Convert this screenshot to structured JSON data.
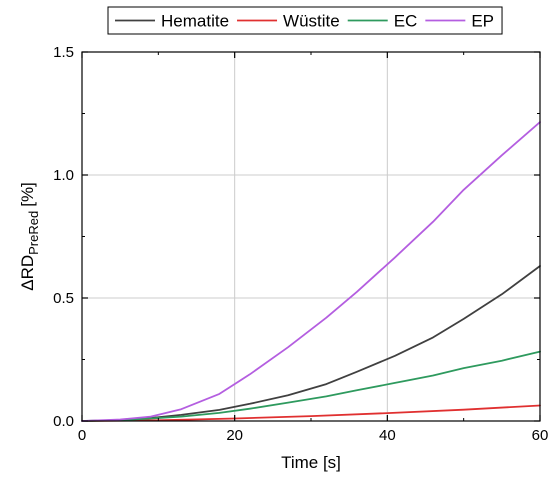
{
  "chart_data": {
    "type": "line",
    "xlabel": "Time [s]",
    "ylabel_main": "ΔRD",
    "ylabel_sub": "PreRed",
    "ylabel_unit": "[%]",
    "xlim": [
      0,
      60
    ],
    "ylim": [
      0,
      1.5
    ],
    "x_ticks": [
      0,
      20,
      40,
      60
    ],
    "x_tick_labels": [
      "0",
      "20",
      "40",
      "60"
    ],
    "y_ticks": [
      0,
      0.5,
      1.0,
      1.5
    ],
    "y_tick_labels": [
      "0.0",
      "0.5",
      "1.0",
      "1.5"
    ],
    "grid": true,
    "legend_position": "top",
    "series": [
      {
        "name": "Hematite",
        "color": "#404040",
        "x": [
          0,
          5,
          9,
          13,
          18,
          22,
          27,
          32,
          36,
          41,
          46,
          50,
          55,
          60
        ],
        "y": [
          0,
          0.004,
          0.012,
          0.025,
          0.045,
          0.07,
          0.105,
          0.15,
          0.2,
          0.265,
          0.34,
          0.415,
          0.515,
          0.63
        ]
      },
      {
        "name": "Wüstite",
        "color": "#e03030",
        "x": [
          0,
          10,
          20,
          30,
          40,
          50,
          60
        ],
        "y": [
          0,
          0.003,
          0.01,
          0.02,
          0.032,
          0.046,
          0.063
        ]
      },
      {
        "name": "EC",
        "color": "#2e9a5e",
        "x": [
          0,
          5,
          9,
          13,
          18,
          22,
          27,
          32,
          36,
          41,
          46,
          50,
          55,
          60
        ],
        "y": [
          0,
          0.003,
          0.01,
          0.018,
          0.033,
          0.05,
          0.075,
          0.1,
          0.125,
          0.155,
          0.185,
          0.215,
          0.245,
          0.282
        ]
      },
      {
        "name": "EP",
        "color": "#b45ee0",
        "x": [
          0,
          5,
          9,
          13,
          18,
          22,
          27,
          32,
          36,
          41,
          46,
          50,
          55,
          60
        ],
        "y": [
          0,
          0.006,
          0.018,
          0.048,
          0.11,
          0.19,
          0.3,
          0.42,
          0.525,
          0.665,
          0.81,
          0.94,
          1.08,
          1.215
        ]
      }
    ]
  }
}
